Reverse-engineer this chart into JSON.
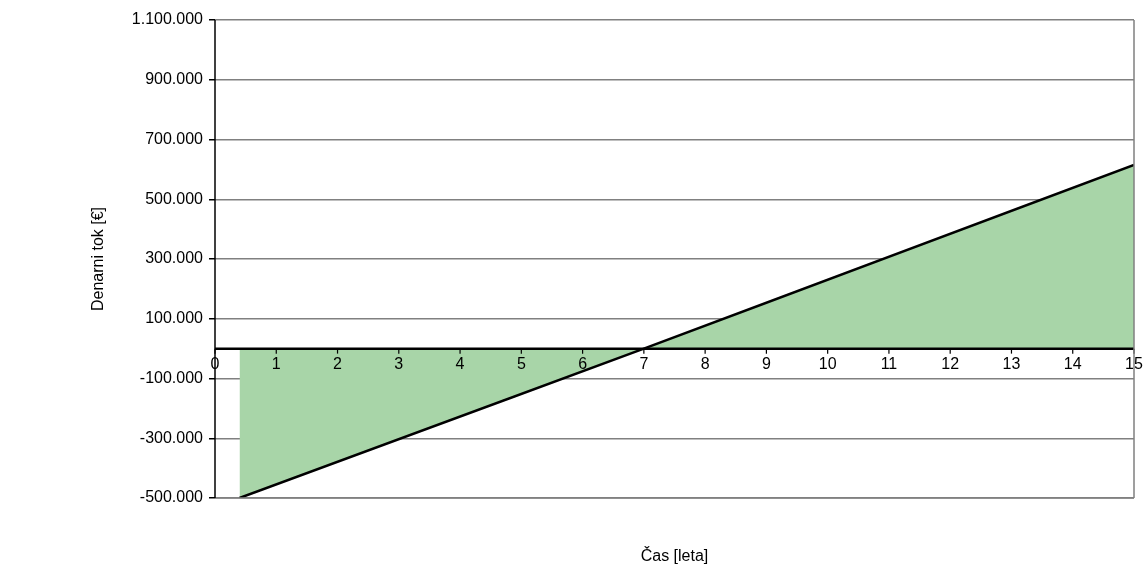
{
  "chart_data": {
    "type": "area",
    "xlabel": "Čas [leta]",
    "ylabel": "Denarni tok [€]",
    "x": [
      0.4,
      7,
      15
    ],
    "series": [
      {
        "color": "#a8d5a8",
        "values": [
          -500000,
          0,
          615000
        ]
      }
    ],
    "xlim": [
      0,
      15
    ],
    "xticks": [
      0,
      1,
      2,
      3,
      4,
      5,
      6,
      7,
      8,
      9,
      10,
      11,
      12,
      13,
      14,
      15
    ],
    "ylim": [
      -500000,
      1100000
    ],
    "yticks": [
      {
        "value": -500000,
        "label": "-500.000"
      },
      {
        "value": -300000,
        "label": "-300.000"
      },
      {
        "value": -100000,
        "label": "-100.000"
      },
      {
        "value": 100000,
        "label": "100.000"
      },
      {
        "value": 300000,
        "label": "300.000"
      },
      {
        "value": 500000,
        "label": "500.000"
      },
      {
        "value": 700000,
        "label": "700.000"
      },
      {
        "value": 900000,
        "label": "900.000"
      },
      {
        "value": 1100000,
        "label": "1.100.000"
      }
    ],
    "grid": "y",
    "legend": false
  }
}
